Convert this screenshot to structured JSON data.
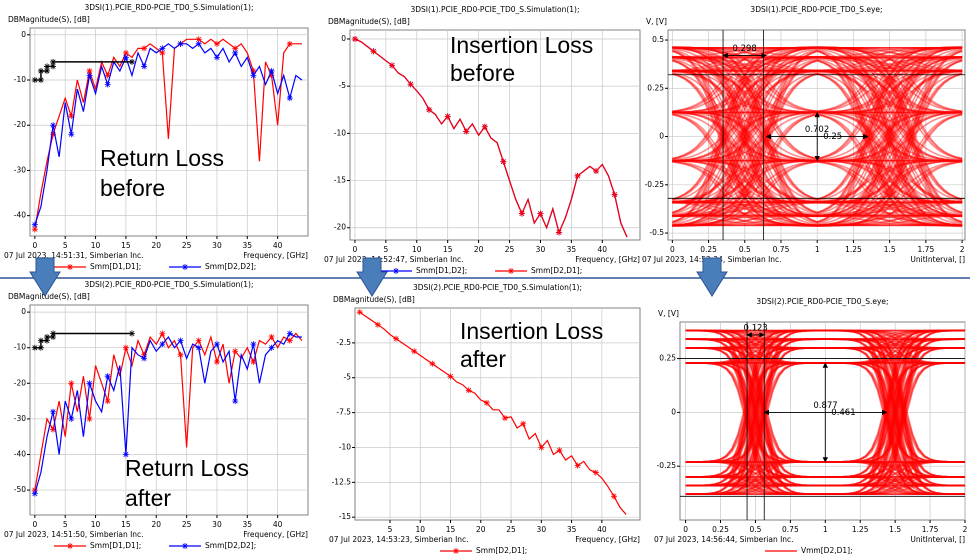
{
  "chart_data": [
    {
      "type": "line",
      "title": "3DSI(1).PCIE_RD0-PCIE_TD0_S.Simulation(1);",
      "y_label": "DBMagnitude(S), [dB]",
      "x_label": "Frequency, [GHz]",
      "timestamp": "07 Jul 2023, 14:51:31, Simberian Inc.",
      "annotation": [
        "Return Loss",
        "before"
      ],
      "xlim": [
        -0.8,
        45
      ],
      "xticks": [
        0,
        5,
        10,
        15,
        20,
        25,
        30,
        35,
        40
      ],
      "ylim": [
        -44.5,
        1.5
      ],
      "yticks": [
        0,
        -10,
        -20,
        -30,
        -40
      ],
      "grid": true,
      "x": [
        0,
        1,
        2,
        3,
        4,
        5,
        6,
        7,
        8,
        9,
        10,
        11,
        12,
        13,
        14,
        15,
        16,
        17,
        18,
        19,
        20,
        21,
        22,
        23,
        24,
        25,
        26,
        27,
        28,
        29,
        30,
        31,
        32,
        33,
        34,
        35,
        36,
        37,
        38,
        39,
        40,
        41,
        42,
        43,
        44
      ],
      "series": [
        {
          "name": "Smm[D1,D1];",
          "color": "#ff0000",
          "values": [
            -43,
            -35,
            -28,
            -22,
            -18,
            -14,
            -18,
            -10,
            -15,
            -8,
            -12,
            -6,
            -9,
            -5,
            -7,
            -4,
            -5,
            -3,
            -3,
            -2,
            -3,
            -4,
            -23,
            -3,
            -2,
            -1,
            -1,
            -1,
            -2,
            -1,
            -2,
            -1,
            -2,
            -3,
            -2,
            -4,
            -8,
            -28,
            -6,
            -9,
            -20,
            -4,
            -2,
            -2,
            -2
          ]
        },
        {
          "name": "Smm[D2,D2];",
          "color": "#0000ff",
          "values": [
            -42,
            -38,
            -30,
            -20,
            -27,
            -15,
            -22,
            -12,
            -17,
            -9,
            -13,
            -7,
            -11,
            -6,
            -8,
            -5,
            -9,
            -4,
            -7,
            -3,
            -4,
            -3,
            -2,
            -3,
            -2,
            -2,
            -3,
            -2,
            -4,
            -3,
            -5,
            -3,
            -6,
            -4,
            -7,
            -5,
            -9,
            -7,
            -11,
            -8,
            -13,
            -9,
            -14,
            -9,
            -10
          ]
        }
      ],
      "mask": {
        "x": [
          0,
          1,
          1,
          2,
          2,
          3,
          3,
          16
        ],
        "values": [
          -10,
          -10,
          -8,
          -8,
          -7,
          -7,
          -6,
          -6
        ]
      }
    },
    {
      "type": "line",
      "title": "3DSI(1).PCIE_RD0-PCIE_TD0_S.Simulation(1);",
      "y_label": "DBMagnitude(S), [dB]",
      "x_label": "Frequency, [GHz]",
      "timestamp": "07 Jul 2023, 14:52:47, Simberian Inc.",
      "annotation": [
        "Insertion Loss",
        "before"
      ],
      "xlim": [
        -0.8,
        46.1
      ],
      "xticks": [
        0,
        5,
        10,
        15,
        20,
        25,
        30,
        35,
        40
      ],
      "ylim": [
        -21.3,
        0.95
      ],
      "yticks": [
        0,
        -5,
        -10,
        -15,
        -20
      ],
      "grid": true,
      "x": [
        0,
        1,
        2,
        3,
        4,
        5,
        6,
        7,
        8,
        9,
        10,
        11,
        12,
        13,
        14,
        15,
        16,
        17,
        18,
        19,
        20,
        21,
        22,
        23,
        24,
        25,
        26,
        27,
        28,
        29,
        30,
        31,
        32,
        33,
        34,
        35,
        36,
        37,
        38,
        39,
        40,
        41,
        42,
        43,
        44
      ],
      "series": [
        {
          "name": "Smm[D1,D2];",
          "color": "#0000ff",
          "values": [
            0,
            -0.3,
            -0.8,
            -1.3,
            -1.8,
            -2.3,
            -2.8,
            -3.6,
            -4,
            -4.8,
            -5.5,
            -6.3,
            -7.5,
            -8,
            -9,
            -8.2,
            -9.5,
            -8.5,
            -9.8,
            -9,
            -10.2,
            -9.3,
            -10.5,
            -11,
            -13,
            -15,
            -17,
            -18.5,
            -17,
            -19.5,
            -18.5,
            -20,
            -18,
            -20.5,
            -19,
            -17,
            -14.5,
            -14,
            -13.5,
            -14,
            -13.3,
            -14.5,
            -16.5,
            -19.5,
            -21
          ]
        },
        {
          "name": "Smm[D2,D1];",
          "color": "#ff0000",
          "values": [
            0,
            -0.3,
            -0.8,
            -1.3,
            -1.8,
            -2.3,
            -2.8,
            -3.6,
            -4,
            -4.8,
            -5.5,
            -6.3,
            -7.5,
            -8,
            -9,
            -8.2,
            -9.5,
            -8.5,
            -9.8,
            -9,
            -10.2,
            -9.3,
            -10.5,
            -11,
            -13,
            -15,
            -17,
            -18.5,
            -17,
            -19.5,
            -18.5,
            -20,
            -18,
            -20.5,
            -19,
            -17,
            -14.5,
            -14,
            -13.5,
            -14,
            -13.3,
            -14.5,
            -16.5,
            -19.5,
            -21
          ]
        }
      ]
    },
    {
      "type": "eye",
      "title": "3DSI(1).PCIE_RD0-PCIE_TD0_S.eye;",
      "y_label": "V, [V]",
      "x_label": "UnitInterval, []",
      "timestamp": "07 Jul 2023, 14:52:24, Simberian Inc.",
      "xlim": [
        -0.03,
        2.02
      ],
      "xticks": [
        0,
        0.25,
        0.5,
        0.75,
        1,
        1.25,
        1.5,
        1.75,
        2
      ],
      "ylim": [
        -0.536,
        0.552
      ],
      "yticks": [
        0.5,
        0.25,
        0,
        -0.25,
        -0.5
      ],
      "grid": true,
      "color": "#ff0000",
      "levels": [
        0.46,
        0.41,
        0.34,
        0.125,
        -0.125,
        -0.34,
        -0.41,
        -0.46
      ],
      "crossings": [
        0.5,
        1.5
      ],
      "crossing_spread": 0.15,
      "guides": {
        "h": [
          0.32,
          -0.32
        ],
        "v": [
          0.35,
          0.63
        ]
      },
      "measurements": [
        {
          "label": "0.298",
          "x": [
            0.35,
            0.648
          ],
          "y": [
            0.42,
            0.42
          ]
        },
        {
          "label": "0.702",
          "x": [
            0.648,
            1.35
          ],
          "y": [
            0,
            0
          ]
        },
        {
          "label": "0.25",
          "x": [
            1,
            1
          ],
          "y": [
            0.125,
            -0.125
          ]
        }
      ]
    },
    {
      "type": "line",
      "title": "3DSI(2).PCIE_RD0-PCIE_TD0_S.Simulation(1);",
      "y_label": "DBMagnitude(S), [dB]",
      "x_label": "Frequency, [GHz]",
      "timestamp": "07 Jul 2023, 14:51:50, Simberian Inc.",
      "annotation": [
        "Return Loss",
        "after"
      ],
      "xlim": [
        -0.8,
        45
      ],
      "xticks": [
        0,
        5,
        10,
        15,
        20,
        25,
        30,
        35,
        40
      ],
      "ylim": [
        -57,
        2
      ],
      "yticks": [
        0,
        -10,
        -20,
        -30,
        -40,
        -50
      ],
      "grid": true,
      "x": [
        0,
        1,
        2,
        3,
        4,
        5,
        6,
        7,
        8,
        9,
        10,
        11,
        12,
        13,
        14,
        15,
        16,
        17,
        18,
        19,
        20,
        21,
        22,
        23,
        24,
        25,
        26,
        27,
        28,
        29,
        30,
        31,
        32,
        33,
        34,
        35,
        36,
        37,
        38,
        39,
        40,
        41,
        42,
        43,
        44
      ],
      "series": [
        {
          "name": "Smm[D1,D1];",
          "color": "#ff0000",
          "values": [
            -50,
            -40,
            -30,
            -33,
            -25,
            -35,
            -20,
            -28,
            -18,
            -30,
            -15,
            -20,
            -25,
            -12,
            -18,
            -10,
            -15,
            -8,
            -12,
            -7,
            -9,
            -6,
            -10,
            -8,
            -12,
            -38,
            -10,
            -8,
            -12,
            -7,
            -14,
            -9,
            -20,
            -11,
            -13,
            -10,
            -14,
            -8,
            -9,
            -7,
            -10,
            -7,
            -8,
            -6,
            -8
          ]
        },
        {
          "name": "Smm[D2,D2];",
          "color": "#0000ff",
          "values": [
            -51,
            -45,
            -35,
            -28,
            -40,
            -25,
            -30,
            -22,
            -35,
            -20,
            -25,
            -28,
            -18,
            -22,
            -15,
            -40,
            -10,
            -12,
            -13,
            -8,
            -11,
            -9,
            -7,
            -10,
            -8,
            -13,
            -9,
            -10,
            -20,
            -11,
            -9,
            -14,
            -11,
            -25,
            -12,
            -16,
            -9,
            -20,
            -12,
            -10,
            -8,
            -9,
            -6,
            -7,
            -7
          ]
        }
      ],
      "mask": {
        "x": [
          0,
          1,
          1,
          2,
          2,
          3,
          3,
          16
        ],
        "values": [
          -10,
          -10,
          -8,
          -8,
          -7,
          -7,
          -6,
          -6
        ]
      }
    },
    {
      "type": "line",
      "title": "3DSI(2).PCIE_RD0-PCIE_TD0_S.Simulation(1);",
      "y_label": "DBMagnitude(S), [dB]",
      "x_label": "Frequency, [GHz]",
      "timestamp": "07 Jul 2023, 14:53:23, Simberian Inc.",
      "annotation": [
        "Insertion Loss",
        "after"
      ],
      "xlim": [
        -0.78,
        46.3
      ],
      "xticks": [
        5,
        10,
        15,
        20,
        25,
        30,
        35,
        40
      ],
      "ylim": [
        -15.2,
        0
      ],
      "yticks": [
        -2.5,
        -5,
        -7.5,
        -10,
        -12.5,
        -15
      ],
      "grid": true,
      "x": [
        0,
        1,
        2,
        3,
        4,
        5,
        6,
        7,
        8,
        9,
        10,
        11,
        12,
        13,
        14,
        15,
        16,
        17,
        18,
        19,
        20,
        21,
        22,
        23,
        24,
        25,
        26,
        27,
        28,
        29,
        30,
        31,
        32,
        33,
        34,
        35,
        36,
        37,
        38,
        39,
        40,
        41,
        42,
        43,
        44
      ],
      "series": [
        {
          "name": "Smm[D2,D1];",
          "color": "#ff0000",
          "values": [
            -0.3,
            -0.6,
            -0.9,
            -1.2,
            -1.5,
            -1.9,
            -2.2,
            -2.5,
            -2.8,
            -3.1,
            -3.4,
            -3.7,
            -4,
            -4.3,
            -4.6,
            -4.9,
            -5.3,
            -5.5,
            -5.9,
            -6.1,
            -6.6,
            -6.8,
            -7.3,
            -7.3,
            -7.9,
            -7.8,
            -8.6,
            -8.3,
            -9.4,
            -9,
            -10,
            -9.5,
            -10.5,
            -10.2,
            -10.9,
            -10.6,
            -11.3,
            -11,
            -11.6,
            -11.8,
            -12.2,
            -12.8,
            -13.5,
            -14.3,
            -14.8
          ]
        }
      ]
    },
    {
      "type": "eye",
      "title": "3DSI(2).PCIE_RD0-PCIE_TD0_S.eye;",
      "y_label": "V, [V]",
      "x_label": "UnitInterval, []",
      "timestamp": "07 Jul 2023, 14:56:44, Simberian Inc.",
      "xlim": [
        -0.04,
        2
      ],
      "xticks": [
        0,
        0.25,
        0.5,
        0.75,
        1,
        1.25,
        1.5,
        1.75,
        2
      ],
      "ylim": [
        -0.5,
        0.42
      ],
      "yticks": [
        0.25,
        0,
        -0.25
      ],
      "grid": true,
      "color": "#ff0000",
      "series": [
        {
          "name": "Vmm[D2,D1];",
          "color": "#ff0000"
        }
      ],
      "levels": [
        0.38,
        0.34,
        0.3,
        0.23,
        -0.23,
        -0.3,
        -0.34,
        -0.38
      ],
      "crossings": [
        0.5,
        1.5
      ],
      "crossing_spread": 0.06,
      "guides": {
        "h": [
          0.25,
          -0.39
        ],
        "v": [
          0.44,
          0.563
        ]
      },
      "measurements": [
        {
          "label": "0.123",
          "x": [
            0.44,
            0.563
          ],
          "y": [
            0.36,
            0.36
          ]
        },
        {
          "label": "0.877",
          "x": [
            0.563,
            1.44
          ],
          "y": [
            0,
            0
          ]
        },
        {
          "label": "0.461",
          "x": [
            1,
            1
          ],
          "y": [
            0.23,
            -0.231
          ]
        }
      ]
    }
  ]
}
